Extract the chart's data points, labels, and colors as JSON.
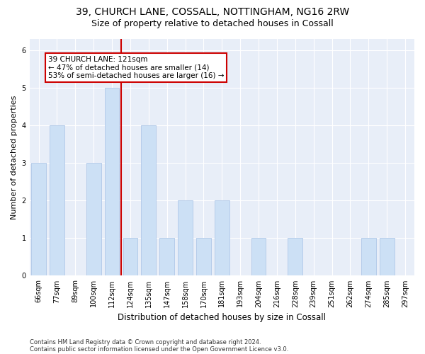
{
  "title1": "39, CHURCH LANE, COSSALL, NOTTINGHAM, NG16 2RW",
  "title2": "Size of property relative to detached houses in Cossall",
  "xlabel": "Distribution of detached houses by size in Cossall",
  "ylabel": "Number of detached properties",
  "categories": [
    "66sqm",
    "77sqm",
    "89sqm",
    "100sqm",
    "112sqm",
    "124sqm",
    "135sqm",
    "147sqm",
    "158sqm",
    "170sqm",
    "181sqm",
    "193sqm",
    "204sqm",
    "216sqm",
    "228sqm",
    "239sqm",
    "251sqm",
    "262sqm",
    "274sqm",
    "285sqm",
    "297sqm"
  ],
  "values": [
    3,
    4,
    0,
    3,
    5,
    1,
    4,
    1,
    2,
    1,
    2,
    0,
    1,
    0,
    1,
    0,
    0,
    0,
    1,
    1,
    0
  ],
  "bar_color": "#cce0f5",
  "bar_edge_color": "#b0c8e8",
  "reference_line_x": 4.5,
  "reference_line_color": "#cc0000",
  "annotation_text": "39 CHURCH LANE: 121sqm\n← 47% of detached houses are smaller (14)\n53% of semi-detached houses are larger (16) →",
  "annotation_box_facecolor": "#ffffff",
  "annotation_box_edgecolor": "#cc0000",
  "ylim": [
    0,
    6.3
  ],
  "yticks": [
    0,
    1,
    2,
    3,
    4,
    5,
    6
  ],
  "footer1": "Contains HM Land Registry data © Crown copyright and database right 2024.",
  "footer2": "Contains public sector information licensed under the Open Government Licence v3.0.",
  "background_color": "#ffffff",
  "plot_bg_color": "#e8eef8",
  "title1_fontsize": 10,
  "title2_fontsize": 9,
  "tick_fontsize": 7,
  "ylabel_fontsize": 8,
  "xlabel_fontsize": 8.5,
  "footer_fontsize": 6,
  "annotation_fontsize": 7.5
}
